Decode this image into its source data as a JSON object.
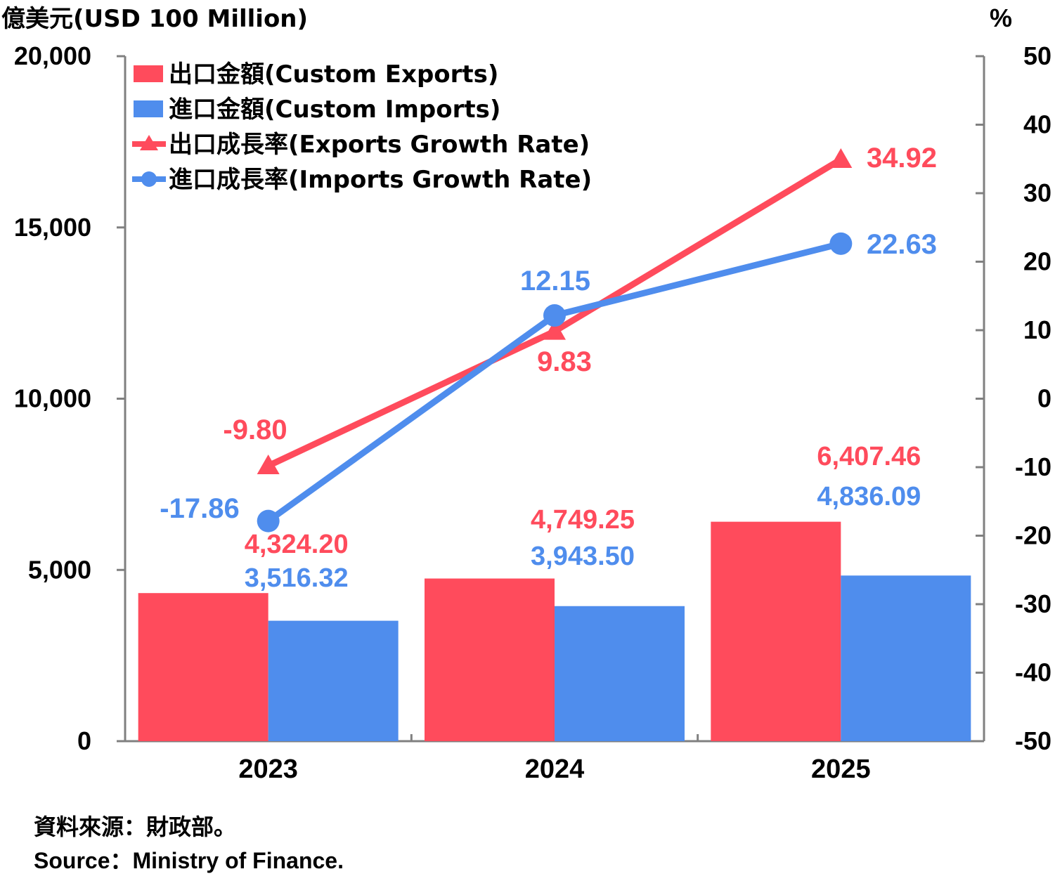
{
  "colors": {
    "exports": "#ff4b5c",
    "imports": "#4f8ded",
    "axis": "#808080",
    "text": "#000000"
  },
  "chart_data": {
    "type": "bar",
    "title": "",
    "ylabel_left": "億美元(USD 100 Million)",
    "ylabel_right": "%",
    "categories": [
      "2023",
      "2024",
      "2025"
    ],
    "ylim_left": [
      0,
      20000
    ],
    "ylim_right": [
      -50,
      50
    ],
    "yticks_left": [
      "0",
      "5,000",
      "10,000",
      "15,000",
      "20,000"
    ],
    "yticks_right": [
      "-50",
      "-40",
      "-30",
      "-20",
      "-10",
      "0",
      "10",
      "20",
      "30",
      "40",
      "50"
    ],
    "grid": false,
    "legend_position": "top-left",
    "series": [
      {
        "name": "出口金額(Custom Exports)",
        "kind": "bar",
        "axis": "left",
        "values": [
          4324.2,
          4749.25,
          6407.46
        ],
        "labels": [
          "4,324.20",
          "4,749.25",
          "6,407.46"
        ]
      },
      {
        "name": "進口金額(Custom Imports)",
        "kind": "bar",
        "axis": "left",
        "values": [
          3516.32,
          3943.5,
          4836.09
        ],
        "labels": [
          "3,516.32",
          "3,943.50",
          "4,836.09"
        ]
      },
      {
        "name": "出口成長率(Exports Growth Rate)",
        "kind": "line",
        "marker": "triangle",
        "axis": "right",
        "values": [
          -9.8,
          9.83,
          34.92
        ],
        "labels": [
          "-9.80",
          "9.83",
          "34.92"
        ]
      },
      {
        "name": "進口成長率(Imports Growth Rate)",
        "kind": "line",
        "marker": "circle",
        "axis": "right",
        "values": [
          -17.86,
          12.15,
          22.63
        ],
        "labels": [
          "-17.86",
          "12.15",
          "22.63"
        ]
      }
    ]
  },
  "footer": {
    "source_zh": "資料來源：財政部。",
    "source_en": "Source：Ministry of Finance."
  }
}
